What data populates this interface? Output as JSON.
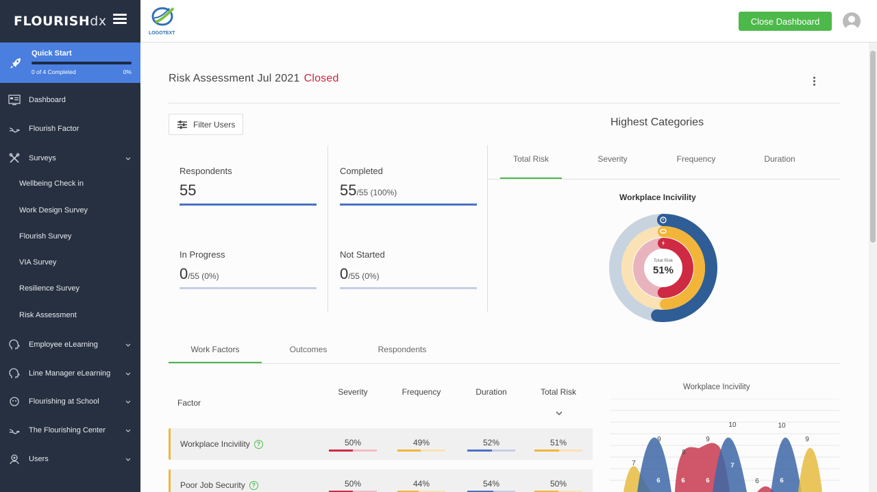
{
  "brand": {
    "bold": "FLOURISH",
    "light": "dx"
  },
  "quick_start": {
    "title": "Quick Start",
    "progress_text": "0 of 4 Completed",
    "percent_text": "0%",
    "progress": 0
  },
  "sidebar": {
    "items": [
      {
        "label": "Dashboard",
        "icon": "dashboard-icon"
      },
      {
        "label": "Flourish Factor",
        "icon": "flourish-factor-icon"
      },
      {
        "label": "Surveys",
        "icon": "tools-icon",
        "expandable": true
      },
      {
        "label": "Wellbeing Check in"
      },
      {
        "label": "Work Design Survey"
      },
      {
        "label": "Flourish Survey"
      },
      {
        "label": "VIA Survey"
      },
      {
        "label": "Resilience Survey"
      },
      {
        "label": "Risk Assessment"
      },
      {
        "label": "Employee eLearning",
        "icon": "head-icon",
        "expandable": true
      },
      {
        "label": "Line Manager eLearning",
        "icon": "head-icon",
        "expandable": true
      },
      {
        "label": "Flourishing at School",
        "icon": "school-icon",
        "expandable": true
      },
      {
        "label": "The Flourishing Center",
        "icon": "center-icon",
        "expandable": true
      },
      {
        "label": "Users",
        "icon": "users-icon",
        "expandable": true
      }
    ]
  },
  "header": {
    "logo_text": "LOGOTEXT",
    "close_label": "Close Dashboard"
  },
  "page": {
    "title": "Risk Assessment Jul 2021",
    "status": "Closed",
    "status_color": "#d0243a"
  },
  "filter": {
    "label": "Filter Users"
  },
  "stats": [
    {
      "title": "Respondents",
      "value": "55",
      "detail": "",
      "color": "#4a72c4"
    },
    {
      "title": "Completed",
      "value": "55",
      "detail": "/55 (100%)",
      "color": "#4a72c4"
    },
    {
      "title": "In Progress",
      "value": "0",
      "detail": "/55 (0%)",
      "color": "#c6cde6"
    },
    {
      "title": "Not Started",
      "value": "0",
      "detail": "/55 (0%)",
      "color": "#c6cde6"
    }
  ],
  "highest": {
    "title": "Highest Categories",
    "tabs": [
      "Total Risk",
      "Severity",
      "Frequency",
      "Duration"
    ],
    "active_tab": "Total Risk",
    "donut_title": "Workplace Incivility",
    "center_label": "Total Risk",
    "center_value": "51%",
    "rings": [
      {
        "name": "duration",
        "value": 0.52,
        "color": "#2f5d96",
        "track": "#c8d3e0",
        "icon": "stopwatch-icon"
      },
      {
        "name": "frequency",
        "value": 0.49,
        "color": "#f2b53a",
        "track": "#fbe2b4",
        "icon": "repeat-icon"
      },
      {
        "name": "severity",
        "value": 0.5,
        "color": "#cf2a43",
        "track": "#e9b3bd",
        "icon": "lightning-icon"
      }
    ]
  },
  "lower_tabs": {
    "tabs": [
      "Work Factors",
      "Outcomes",
      "Respondents"
    ],
    "active": "Work Factors"
  },
  "table": {
    "headers": {
      "factor": "Factor",
      "severity": "Severity",
      "frequency": "Frequency",
      "duration": "Duration",
      "total": "Total Risk"
    },
    "rows": [
      {
        "name": "Workplace Incivility",
        "severity": "50%",
        "frequency": "49%",
        "duration": "52%",
        "total": "51%",
        "sv": 0.5,
        "fv": 0.49,
        "dv": 0.52,
        "tv": 0.51
      },
      {
        "name": "Poor Job Security",
        "severity": "50%",
        "frequency": "44%",
        "duration": "54%",
        "total": "50%",
        "sv": 0.5,
        "fv": 0.44,
        "dv": 0.54,
        "tv": 0.5
      }
    ],
    "bar_colors": {
      "severity": "#cf2a43",
      "frequency": "#f2b53a",
      "duration": "#4a72c4",
      "total": "#f2b53a"
    }
  },
  "mini_chart": {
    "title": "Workplace Incivility",
    "peak_labels": [
      "7",
      "9",
      "8",
      "9",
      "10",
      "6",
      "10",
      "9"
    ],
    "inner_labels": [
      "6",
      "6",
      "6",
      "7",
      "6"
    ],
    "bottom_labels": [
      "5",
      "5",
      "5"
    ],
    "colors": {
      "red": "#c7394f",
      "blue": "#3d67a7",
      "yellow": "#e6bb3f"
    }
  }
}
